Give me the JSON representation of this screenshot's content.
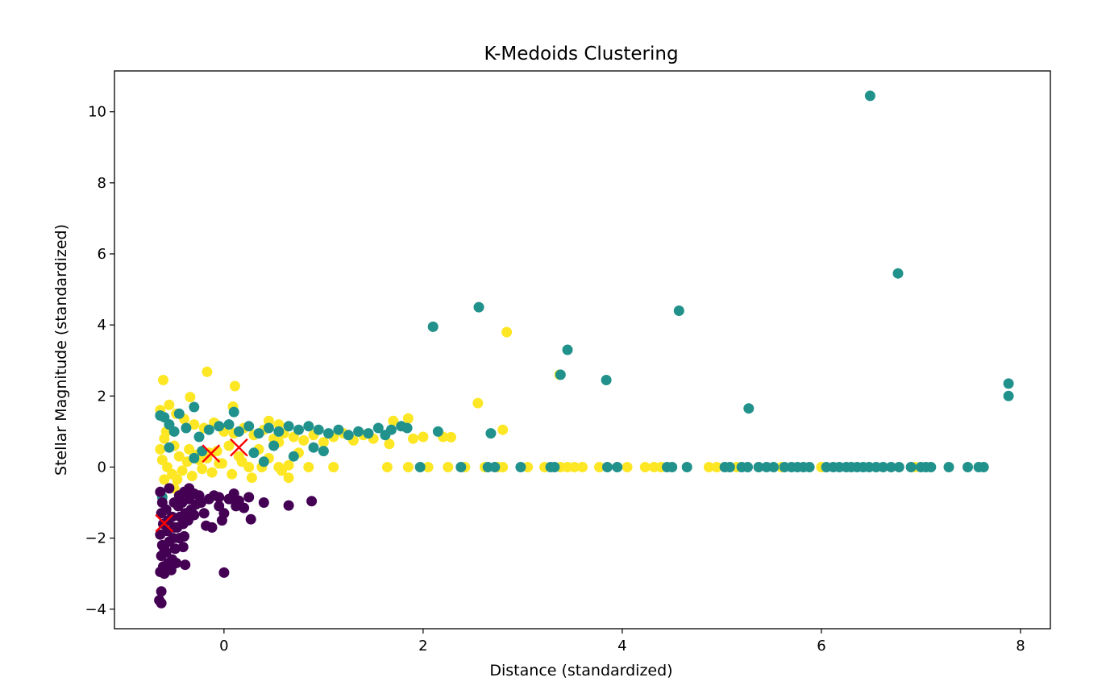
{
  "chart_data": {
    "type": "scatter",
    "title": "K-Medoids Clustering",
    "xlabel": "Distance (standardized)",
    "ylabel": "Stellar Magnitude (standardized)",
    "xlim": [
      -1.1,
      8.3
    ],
    "ylim": [
      -4.55,
      11.15
    ],
    "xticks": [
      0,
      2,
      4,
      6,
      8
    ],
    "yticks": [
      -4,
      -2,
      0,
      2,
      4,
      6,
      8,
      10
    ],
    "grid": false,
    "legend": "none",
    "colors": {
      "cluster_0": "#440154",
      "cluster_1": "#21918c",
      "cluster_2": "#fde725",
      "medoid": "#ff0000"
    },
    "series": [
      {
        "cluster": 2,
        "points": [
          [
            -0.64,
            1.6
          ],
          [
            -0.55,
            1.75
          ],
          [
            -0.48,
            1.5
          ],
          [
            -0.4,
            1.35
          ],
          [
            -0.3,
            1.2
          ],
          [
            -0.2,
            1.1
          ],
          [
            -0.1,
            1.25
          ],
          [
            0.0,
            1.0
          ],
          [
            0.1,
            0.95
          ],
          [
            0.2,
            1.1
          ],
          [
            0.3,
            0.9
          ],
          [
            0.4,
            1.05
          ],
          [
            0.5,
            0.8
          ],
          [
            0.6,
            0.95
          ],
          [
            0.7,
            0.85
          ],
          [
            0.8,
            0.75
          ],
          [
            0.9,
            0.9
          ],
          [
            1.0,
            0.7
          ],
          [
            1.1,
            0.85
          ],
          [
            1.2,
            0.95
          ],
          [
            1.3,
            0.75
          ],
          [
            1.4,
            0.9
          ],
          [
            1.5,
            0.8
          ],
          [
            1.66,
            0.65
          ],
          [
            1.7,
            1.3
          ],
          [
            1.85,
            1.37
          ],
          [
            1.9,
            0.8
          ],
          [
            2.0,
            0.85
          ],
          [
            2.2,
            0.85
          ],
          [
            2.28,
            0.84
          ],
          [
            -0.6,
            0.8
          ],
          [
            -0.5,
            0.6
          ],
          [
            -0.45,
            0.3
          ],
          [
            -0.35,
            0.5
          ],
          [
            -0.25,
            0.2
          ],
          [
            -0.15,
            0.4
          ],
          [
            -0.05,
            0.1
          ],
          [
            0.05,
            0.6
          ],
          [
            0.15,
            0.3
          ],
          [
            0.25,
            0.0
          ],
          [
            0.35,
            0.5
          ],
          [
            0.45,
            0.25
          ],
          [
            0.55,
            0.7
          ],
          [
            0.65,
            0.05
          ],
          [
            0.75,
            0.4
          ],
          [
            -0.62,
            0.2
          ],
          [
            -0.57,
            0.0
          ],
          [
            -0.52,
            -0.2
          ],
          [
            -0.47,
            -0.35
          ],
          [
            -0.42,
            -0.1
          ],
          [
            -0.37,
            0.15
          ],
          [
            -0.32,
            -0.25
          ],
          [
            -0.27,
            0.35
          ],
          [
            -0.22,
            -0.05
          ],
          [
            -0.17,
            0.25
          ],
          [
            -0.12,
            -0.15
          ],
          [
            -0.07,
            0.45
          ],
          [
            -0.02,
            0.1
          ],
          [
            0.08,
            -0.2
          ],
          [
            0.18,
            0.15
          ],
          [
            0.28,
            -0.3
          ],
          [
            0.38,
            0.0
          ],
          [
            0.58,
            -0.1
          ],
          [
            -0.4,
            -0.75
          ],
          [
            -0.5,
            -0.6
          ],
          [
            -0.58,
            1.0
          ],
          [
            -0.64,
            0.5
          ],
          [
            -0.6,
            -0.35
          ],
          [
            0.45,
            1.3
          ],
          [
            0.55,
            1.2
          ],
          [
            -0.34,
            1.97
          ],
          [
            -0.61,
            2.45
          ],
          [
            -0.17,
            2.68
          ],
          [
            0.11,
            2.28
          ],
          [
            0.09,
            1.7
          ],
          [
            1.1,
            0.0
          ],
          [
            1.64,
            0.0
          ],
          [
            1.85,
            0.0
          ],
          [
            2.05,
            0.0
          ],
          [
            2.25,
            0.0
          ],
          [
            2.42,
            0.0
          ],
          [
            2.62,
            0.0
          ],
          [
            2.75,
            0.0
          ],
          [
            2.8,
            0.0
          ],
          [
            3.05,
            0.0
          ],
          [
            3.22,
            0.0
          ],
          [
            3.38,
            0.0
          ],
          [
            3.45,
            0.0
          ],
          [
            3.52,
            0.0
          ],
          [
            3.6,
            0.0
          ],
          [
            3.77,
            0.0
          ],
          [
            4.05,
            0.0
          ],
          [
            4.23,
            0.0
          ],
          [
            4.32,
            0.0
          ],
          [
            4.39,
            0.0
          ],
          [
            4.87,
            0.0
          ],
          [
            4.95,
            0.0
          ],
          [
            5.15,
            0.0
          ],
          [
            5.6,
            0.0
          ],
          [
            6.0,
            0.0
          ],
          [
            6.94,
            0.0
          ],
          [
            2.55,
            1.8
          ],
          [
            2.8,
            1.05
          ],
          [
            2.84,
            3.8
          ],
          [
            3.37,
            2.6
          ],
          [
            0.55,
            0.0
          ],
          [
            0.65,
            -0.3
          ],
          [
            0.85,
            0.0
          ]
        ]
      },
      {
        "cluster": 1,
        "points": [
          [
            -0.64,
            1.45
          ],
          [
            -0.6,
            1.4
          ],
          [
            -0.55,
            1.2
          ],
          [
            -0.5,
            1.0
          ],
          [
            -0.45,
            1.5
          ],
          [
            -0.38,
            1.1
          ],
          [
            -0.3,
            1.69
          ],
          [
            -0.25,
            0.85
          ],
          [
            -0.15,
            1.05
          ],
          [
            -0.05,
            1.15
          ],
          [
            0.05,
            1.2
          ],
          [
            0.1,
            1.55
          ],
          [
            0.15,
            1.0
          ],
          [
            0.25,
            1.15
          ],
          [
            0.35,
            0.95
          ],
          [
            0.45,
            1.1
          ],
          [
            0.55,
            1.0
          ],
          [
            0.65,
            1.15
          ],
          [
            0.75,
            1.05
          ],
          [
            0.85,
            1.15
          ],
          [
            0.95,
            1.05
          ],
          [
            1.05,
            0.95
          ],
          [
            1.15,
            1.05
          ],
          [
            1.25,
            0.9
          ],
          [
            1.35,
            1.0
          ],
          [
            1.45,
            0.95
          ],
          [
            1.55,
            1.1
          ],
          [
            1.62,
            0.9
          ],
          [
            1.68,
            1.05
          ],
          [
            1.78,
            1.15
          ],
          [
            1.84,
            1.1
          ],
          [
            2.15,
            1.0
          ],
          [
            0.3,
            0.4
          ],
          [
            0.5,
            0.6
          ],
          [
            0.7,
            0.3
          ],
          [
            0.9,
            0.55
          ],
          [
            1.0,
            0.45
          ],
          [
            0.4,
            0.15
          ],
          [
            -0.55,
            0.55
          ],
          [
            -0.3,
            0.25
          ],
          [
            -0.62,
            -0.85
          ],
          [
            -0.22,
            0.45
          ],
          [
            2.1,
            3.95
          ],
          [
            2.56,
            4.5
          ],
          [
            2.68,
            0.95
          ],
          [
            3.38,
            2.6
          ],
          [
            3.45,
            3.3
          ],
          [
            3.84,
            2.45
          ],
          [
            4.57,
            4.4
          ],
          [
            5.27,
            1.65
          ],
          [
            6.49,
            10.45
          ],
          [
            6.77,
            5.45
          ],
          [
            7.88,
            2.35
          ],
          [
            7.88,
            2.0
          ],
          [
            1.97,
            0.0
          ],
          [
            2.38,
            0.0
          ],
          [
            2.65,
            0.0
          ],
          [
            2.72,
            0.0
          ],
          [
            2.98,
            0.0
          ],
          [
            3.28,
            0.0
          ],
          [
            3.32,
            0.0
          ],
          [
            3.85,
            0.0
          ],
          [
            3.95,
            0.0
          ],
          [
            4.45,
            0.0
          ],
          [
            4.5,
            0.0
          ],
          [
            4.65,
            0.0
          ],
          [
            5.03,
            0.0
          ],
          [
            5.08,
            0.0
          ],
          [
            5.2,
            0.0
          ],
          [
            5.26,
            0.0
          ],
          [
            5.37,
            0.0
          ],
          [
            5.45,
            0.0
          ],
          [
            5.52,
            0.0
          ],
          [
            5.63,
            0.0
          ],
          [
            5.7,
            0.0
          ],
          [
            5.76,
            0.0
          ],
          [
            5.82,
            0.0
          ],
          [
            5.88,
            0.0
          ],
          [
            6.05,
            0.0
          ],
          [
            6.12,
            0.0
          ],
          [
            6.18,
            0.0
          ],
          [
            6.25,
            0.0
          ],
          [
            6.3,
            0.0
          ],
          [
            6.36,
            0.0
          ],
          [
            6.42,
            0.0
          ],
          [
            6.48,
            0.0
          ],
          [
            6.55,
            0.0
          ],
          [
            6.62,
            0.0
          ],
          [
            6.7,
            0.0
          ],
          [
            6.78,
            0.0
          ],
          [
            6.9,
            0.0
          ],
          [
            7.0,
            0.0
          ],
          [
            7.05,
            0.0
          ],
          [
            7.1,
            0.0
          ],
          [
            7.28,
            0.0
          ],
          [
            7.47,
            0.0
          ],
          [
            7.58,
            0.0
          ],
          [
            7.63,
            0.0
          ]
        ]
      },
      {
        "cluster": 0,
        "points": [
          [
            -0.64,
            -0.7
          ],
          [
            -0.62,
            -1.0
          ],
          [
            -0.63,
            -1.3
          ],
          [
            -0.61,
            -1.6
          ],
          [
            -0.64,
            -1.9
          ],
          [
            -0.62,
            -2.2
          ],
          [
            -0.63,
            -2.5
          ],
          [
            -0.61,
            -2.8
          ],
          [
            -0.64,
            -2.95
          ],
          [
            -0.6,
            -3.0
          ],
          [
            -0.58,
            -1.2
          ],
          [
            -0.56,
            -1.5
          ],
          [
            -0.57,
            -1.8
          ],
          [
            -0.55,
            -2.1
          ],
          [
            -0.58,
            -2.4
          ],
          [
            -0.56,
            -2.7
          ],
          [
            -0.53,
            -2.9
          ],
          [
            -0.5,
            -1.0
          ],
          [
            -0.52,
            -1.4
          ],
          [
            -0.5,
            -1.7
          ],
          [
            -0.51,
            -2.0
          ],
          [
            -0.49,
            -2.3
          ],
          [
            -0.52,
            -2.6
          ],
          [
            -0.45,
            -0.8
          ],
          [
            -0.46,
            -1.1
          ],
          [
            -0.44,
            -1.4
          ],
          [
            -0.47,
            -1.7
          ],
          [
            -0.45,
            -2.0
          ],
          [
            -0.4,
            -0.7
          ],
          [
            -0.42,
            -1.0
          ],
          [
            -0.39,
            -1.3
          ],
          [
            -0.41,
            -1.6
          ],
          [
            -0.4,
            -1.95
          ],
          [
            -0.41,
            -2.25
          ],
          [
            -0.39,
            -2.75
          ],
          [
            -0.35,
            -0.9
          ],
          [
            -0.33,
            -1.2
          ],
          [
            -0.36,
            -1.5
          ],
          [
            -0.3,
            -0.75
          ],
          [
            -0.28,
            -1.05
          ],
          [
            -0.3,
            -1.35
          ],
          [
            -0.25,
            -0.8
          ],
          [
            -0.23,
            -1.0
          ],
          [
            -0.2,
            -1.3
          ],
          [
            -0.15,
            -0.9
          ],
          [
            -0.18,
            -1.65
          ],
          [
            -0.12,
            -1.7
          ],
          [
            -0.1,
            -0.8
          ],
          [
            -0.05,
            -0.85
          ],
          [
            -0.02,
            -1.5
          ],
          [
            0.0,
            -1.3
          ],
          [
            0.05,
            -0.9
          ],
          [
            0.1,
            -0.75
          ],
          [
            0.12,
            -1.1
          ],
          [
            0.2,
            -1.15
          ],
          [
            0.25,
            -0.85
          ],
          [
            0.27,
            -1.47
          ],
          [
            0.4,
            -1.0
          ],
          [
            0.65,
            -1.08
          ],
          [
            0.88,
            -0.96
          ],
          [
            0.0,
            -2.97
          ],
          [
            -0.63,
            -3.5
          ],
          [
            -0.65,
            -3.75
          ],
          [
            -0.63,
            -3.83
          ],
          [
            -0.55,
            -0.6
          ],
          [
            -0.35,
            -0.6
          ],
          [
            -0.05,
            -1.1
          ],
          [
            0.15,
            -0.95
          ],
          [
            -0.6,
            -2.3
          ],
          [
            -0.48,
            -2.7
          ]
        ]
      }
    ],
    "medoids": [
      [
        -0.6,
        -1.58
      ],
      [
        -0.13,
        0.38
      ],
      [
        0.15,
        0.55
      ]
    ]
  }
}
